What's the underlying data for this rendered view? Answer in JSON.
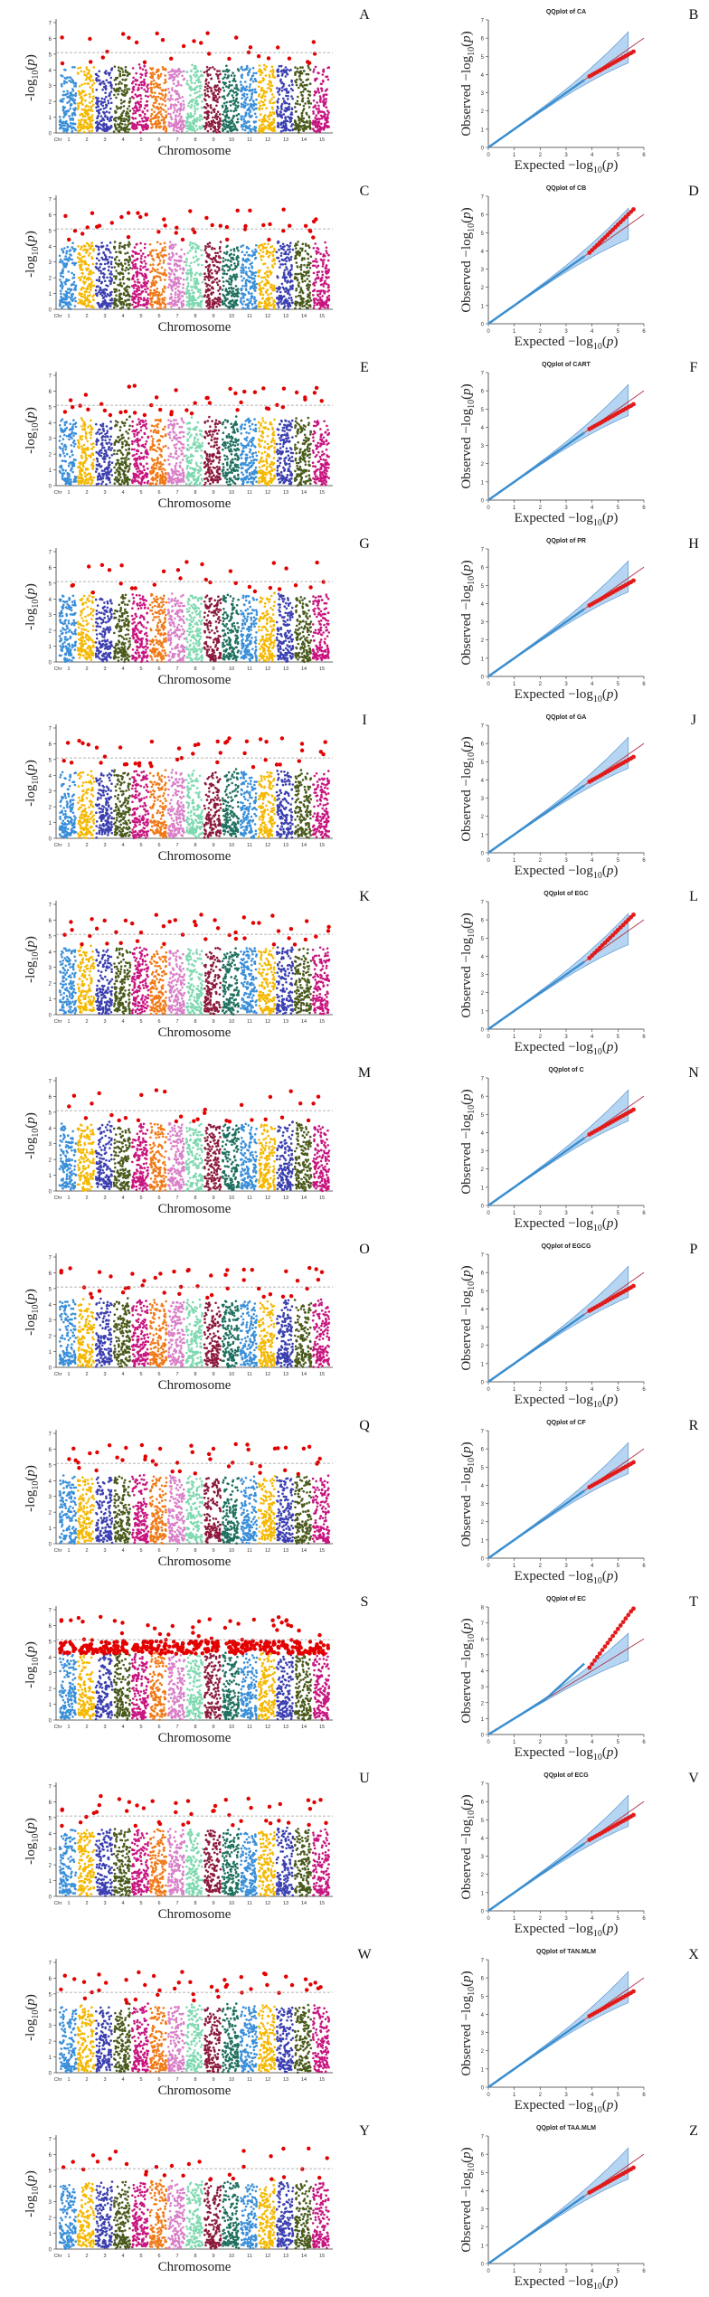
{
  "chart_data": {
    "type": "scatter",
    "description_free": true,
    "manhattan": {
      "xlabel": "Chromosome",
      "ylabel": "-log10(p)",
      "chromosome_ticks": [
        "Chr",
        "1",
        "2",
        "3",
        "4",
        "5",
        "6",
        "7",
        "8",
        "9",
        "10",
        "11",
        "12",
        "13",
        "14",
        "15"
      ],
      "ylim": [
        0,
        7
      ],
      "chromosome_colors": [
        "#3a8fd9",
        "#f5b800",
        "#3b3fb0",
        "#4a5a1c",
        "#c8157f",
        "#f07a18",
        "#d97fc8",
        "#7fd9b0",
        "#8c1a3c",
        "#1f7060",
        "#3a8fd9",
        "#f5b800",
        "#3b3fb0",
        "#4a5a1c",
        "#c8157f"
      ]
    },
    "qqplot": {
      "xlabel": "Expected -log10(p)",
      "ylabel": "Observed -log10(p)",
      "xlim": [
        0,
        6
      ],
      "ylim": [
        0,
        7
      ],
      "x_ticks": [
        "0",
        "1",
        "2",
        "3",
        "4",
        "5",
        "6"
      ],
      "y_ticks": [
        "0",
        "1",
        "2",
        "3",
        "4",
        "5",
        "6",
        "7"
      ]
    },
    "panels": [
      {
        "row": 0,
        "manhattan_label": "A",
        "qq_label": "B",
        "qq_title": "QQplot of CA",
        "threshold": 5.1,
        "ylim": 7
      },
      {
        "row": 1,
        "manhattan_label": "C",
        "qq_label": "D",
        "qq_title": "QQplot of CB",
        "threshold": 5.1,
        "ylim": 7
      },
      {
        "row": 2,
        "manhattan_label": "E",
        "qq_label": "F",
        "qq_title": "QQplot of CART",
        "threshold": 5.1,
        "ylim": 7
      },
      {
        "row": 3,
        "manhattan_label": "G",
        "qq_label": "H",
        "qq_title": "QQplot of PR",
        "threshold": 5.1,
        "ylim": 7
      },
      {
        "row": 4,
        "manhattan_label": "I",
        "qq_label": "J",
        "qq_title": "QQplot of GA",
        "threshold": 5.1,
        "ylim": 7
      },
      {
        "row": 5,
        "manhattan_label": "K",
        "qq_label": "L",
        "qq_title": "QQplot of EGC",
        "threshold": 5.1,
        "ylim": 7
      },
      {
        "row": 6,
        "manhattan_label": "M",
        "qq_label": "N",
        "qq_title": "QQplot of C",
        "threshold": 5.1,
        "ylim": 7
      },
      {
        "row": 7,
        "manhattan_label": "O",
        "qq_label": "P",
        "qq_title": "QQplot of EGCG",
        "threshold": 5.1,
        "ylim": 7
      },
      {
        "row": 8,
        "manhattan_label": "Q",
        "qq_label": "R",
        "qq_title": "QQplot of CF",
        "threshold": 5.1,
        "ylim": 7
      },
      {
        "row": 9,
        "manhattan_label": "S",
        "qq_label": "T",
        "qq_title": "QQplot of EC",
        "threshold": 5.1,
        "ylim": 8
      },
      {
        "row": 10,
        "manhattan_label": "U",
        "qq_label": "V",
        "qq_title": "QQplot of ECG",
        "threshold": 5.1,
        "ylim": 7
      },
      {
        "row": 11,
        "manhattan_label": "W",
        "qq_label": "X",
        "qq_title": "QQplot of TAN.MLM",
        "threshold": 5.1,
        "ylim": 7
      },
      {
        "row": 12,
        "manhattan_label": "Y",
        "qq_label": "Z",
        "qq_title": "QQplot of TAA.MLM",
        "threshold": 5.1,
        "ylim": 7
      }
    ]
  }
}
